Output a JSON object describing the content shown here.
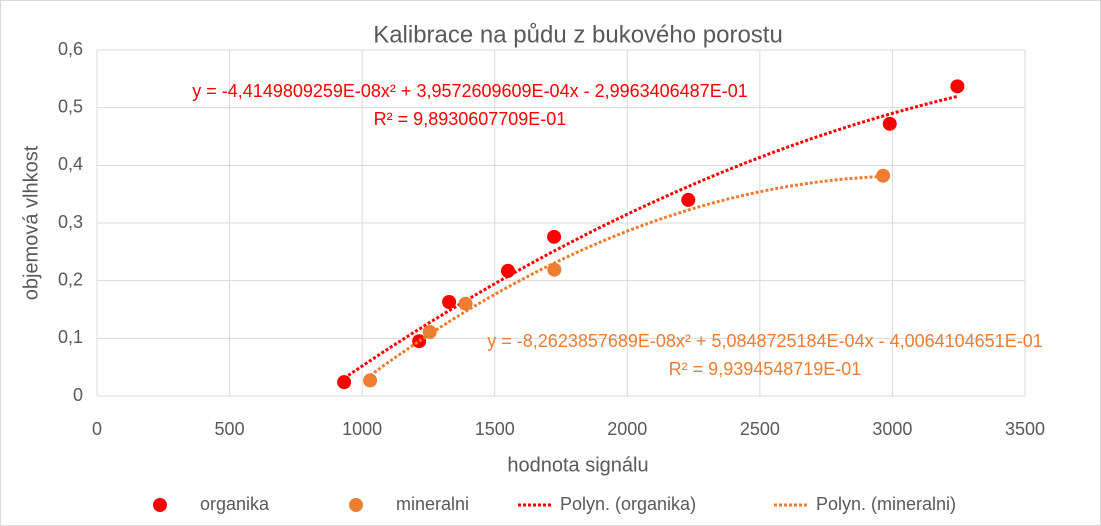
{
  "chart_data": {
    "type": "scatter",
    "title": "Kalibrace na půdu z bukového porostu",
    "xlabel": "hodnota signálu",
    "ylabel": "objemová vlhkost",
    "xlim": [
      0,
      3500
    ],
    "xticks": [
      0,
      500,
      1000,
      1500,
      2000,
      2500,
      3000,
      3500
    ],
    "ylim": [
      0,
      0.6
    ],
    "yticks": [
      0,
      {
        "value": 0.1,
        "label": "0,1"
      },
      {
        "value": 0.2,
        "label": "0,2"
      },
      {
        "value": 0.3,
        "label": "0,3"
      },
      {
        "value": 0.4,
        "label": "0,4"
      },
      {
        "value": 0.5,
        "label": "0,5"
      },
      {
        "value": 0.6,
        "label": "0,6"
      }
    ],
    "grid": true,
    "legend": "bottom",
    "series": [
      {
        "name": "organika",
        "color": "#ff0000",
        "x": [
          932,
          1215,
          1328,
          1550,
          1724,
          2230,
          2990,
          3245
        ],
        "values": [
          0.024,
          0.095,
          0.163,
          0.217,
          0.276,
          0.34,
          0.472,
          0.537
        ],
        "trendline": {
          "name": "Polyn. (organika)",
          "coefficients": [
            -4.4149809259e-08,
            0.00039572609609,
            -0.29963406487
          ],
          "equation": "y = -4,4149809259E-08x² + 3,9572609609E-04x - 2,9963406487E-01",
          "r2": "R² = 9,8930607709E-01"
        }
      },
      {
        "name": "mineralni",
        "color": "#ed7d31",
        "x": [
          1030,
          1255,
          1390,
          1725,
          2965
        ],
        "values": [
          0.027,
          0.111,
          0.16,
          0.219,
          0.382
        ],
        "trendline": {
          "name": "Polyn. (mineralni)",
          "coefficients": [
            -8.2623857689e-08,
            0.00050848725184,
            -0.40064104651
          ],
          "equation": "y = -8,2623857689E-08x² + 5,0848725184E-04x - 4,0064104651E-01",
          "r2": "R² = 9,9394548719E-01"
        }
      }
    ]
  }
}
